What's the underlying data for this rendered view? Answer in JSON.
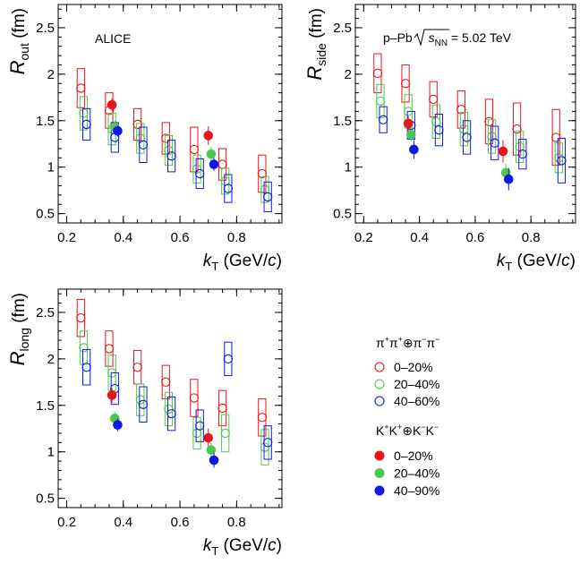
{
  "chart_data": {
    "type": "scatter",
    "experiment_label": "ALICE",
    "system_label": "p–Pb √sNN = 5.02 TeV",
    "system_parts": {
      "prefix": "p–Pb ",
      "s": "s",
      "sub": "NN",
      "suffix": " = 5.02 TeV"
    },
    "x_title": {
      "k": "k",
      "sub": "T",
      "unit_open": " (GeV/",
      "unit_c": "c",
      "unit_close": ")"
    },
    "xlim": [
      0.17,
      0.96
    ],
    "ylim": [
      0.4,
      2.75
    ],
    "x_ticks": [
      "0.2",
      "0.4",
      "0.6",
      "0.8"
    ],
    "y_ticks": [
      "0.5",
      "1",
      "1.5",
      "2",
      "2.5"
    ],
    "x_tick_values": [
      0.2,
      0.4,
      0.6,
      0.8
    ],
    "y_tick_values": [
      0.5,
      1,
      1.5,
      2,
      2.5
    ],
    "panels": [
      {
        "name": "Rout",
        "ylabel_main": "R",
        "ylabel_sub": "out",
        "ylabel_unit": " (fm)",
        "series": [
          {
            "name": "π+π+⊕π−π− 0–20%",
            "color": "#e8151b",
            "filled": false,
            "x": [
              0.25,
              0.35,
              0.45,
              0.55,
              0.65,
              0.75,
              0.89
            ],
            "y": [
              1.85,
              1.61,
              1.46,
              1.31,
              1.19,
              1.03,
              0.93
            ],
            "sys": [
              0.21,
              0.19,
              0.17,
              0.17,
              0.24,
              0.17,
              0.2
            ]
          },
          {
            "name": "π+π+⊕π−π− 20–40%",
            "color": "#4cc84c",
            "filled": false,
            "x": [
              0.26,
              0.36,
              0.46,
              0.56,
              0.66,
              0.76,
              0.9
            ],
            "y": [
              1.58,
              1.41,
              1.31,
              1.18,
              0.98,
              0.85,
              0.76
            ],
            "sys": [
              0.18,
              0.17,
              0.16,
              0.16,
              0.15,
              0.14,
              0.14
            ]
          },
          {
            "name": "π+π+⊕π−π− 40–60%",
            "color": "#0f18e8",
            "filled": false,
            "x": [
              0.27,
              0.37,
              0.47,
              0.57,
              0.67,
              0.77,
              0.91
            ],
            "y": [
              1.46,
              1.32,
              1.24,
              1.12,
              0.93,
              0.77,
              0.68
            ],
            "sys": [
              0.17,
              0.16,
              0.19,
              0.17,
              0.16,
              0.15,
              0.16
            ]
          },
          {
            "name": "K+K+⊕K−K− 0–20%",
            "color": "#e8151b",
            "filled": true,
            "x": [
              0.36,
              0.7
            ],
            "y": [
              1.67,
              1.34
            ],
            "stat": [
              0.07,
              0.1
            ]
          },
          {
            "name": "K+K+⊕K−K− 20–40%",
            "color": "#4cc84c",
            "filled": true,
            "x": [
              0.37,
              0.71
            ],
            "y": [
              1.43,
              1.14
            ],
            "stat": [
              0.07,
              0.08
            ]
          },
          {
            "name": "K+K+⊕K−K− 40–90%",
            "color": "#0f18e8",
            "filled": true,
            "x": [
              0.38,
              0.72
            ],
            "y": [
              1.39,
              1.03
            ],
            "stat": [
              0.06,
              0.07
            ]
          }
        ]
      },
      {
        "name": "Rside",
        "ylabel_main": "R",
        "ylabel_sub": "side",
        "ylabel_unit": " (fm)",
        "series": [
          {
            "name": "π+π+⊕π−π− 0–20%",
            "color": "#e8151b",
            "filled": false,
            "x": [
              0.25,
              0.35,
              0.45,
              0.55,
              0.65,
              0.75,
              0.89
            ],
            "y": [
              2.01,
              1.9,
              1.73,
              1.62,
              1.49,
              1.41,
              1.32
            ],
            "sys": [
              0.21,
              0.2,
              0.19,
              0.2,
              0.24,
              0.28,
              0.3
            ]
          },
          {
            "name": "π+π+⊕π−π− 20–40%",
            "color": "#4cc84c",
            "filled": false,
            "x": [
              0.26,
              0.36,
              0.46,
              0.56,
              0.66,
              0.76,
              0.9
            ],
            "y": [
              1.71,
              1.6,
              1.49,
              1.41,
              1.33,
              1.22,
              1.1
            ],
            "sys": [
              0.18,
              0.18,
              0.18,
              0.18,
              0.18,
              0.17,
              0.16
            ]
          },
          {
            "name": "π+π+⊕π−π− 40–60%",
            "color": "#0f18e8",
            "filled": false,
            "x": [
              0.27,
              0.37,
              0.47,
              0.57,
              0.67,
              0.77,
              0.91
            ],
            "y": [
              1.51,
              1.45,
              1.4,
              1.32,
              1.26,
              1.14,
              1.07
            ],
            "sys": [
              0.14,
              0.15,
              0.17,
              0.18,
              0.18,
              0.16,
              0.24
            ]
          },
          {
            "name": "K+K+⊕K−K− 0–20%",
            "color": "#e8151b",
            "filled": true,
            "x": [
              0.36,
              0.7
            ],
            "y": [
              1.47,
              1.17
            ],
            "stat": [
              0.08,
              0.12
            ]
          },
          {
            "name": "K+K+⊕K−K− 20–40%",
            "color": "#4cc84c",
            "filled": true,
            "x": [
              0.37,
              0.71
            ],
            "y": [
              1.35,
              0.94
            ],
            "stat": [
              0.07,
              0.1
            ]
          },
          {
            "name": "K+K+⊕K−K− 40–90%",
            "color": "#0f18e8",
            "filled": true,
            "x": [
              0.38,
              0.72
            ],
            "y": [
              1.19,
              0.87
            ],
            "stat": [
              0.1,
              0.12
            ]
          }
        ]
      },
      {
        "name": "Rlong",
        "ylabel_main": "R",
        "ylabel_sub": "long",
        "ylabel_unit": " (fm)",
        "series": [
          {
            "name": "π+π+⊕π−π− 0–20%",
            "color": "#e8151b",
            "filled": false,
            "x": [
              0.25,
              0.35,
              0.45,
              0.55,
              0.65,
              0.75,
              0.89
            ],
            "y": [
              2.44,
              2.11,
              1.91,
              1.75,
              1.58,
              1.47,
              1.37
            ],
            "sys": [
              0.2,
              0.19,
              0.18,
              0.18,
              0.2,
              0.19,
              0.2
            ]
          },
          {
            "name": "π+π+⊕π−π− 20–40%",
            "color": "#4cc84c",
            "filled": false,
            "x": [
              0.26,
              0.36,
              0.46,
              0.56,
              0.66,
              0.76,
              0.9
            ],
            "y": [
              2.12,
              1.85,
              1.56,
              1.46,
              1.2,
              1.2,
              1.05
            ],
            "sys": [
              0.18,
              0.19,
              0.17,
              0.18,
              0.17,
              0.2,
              0.19
            ]
          },
          {
            "name": "π+π+⊕π−π− 40–60%",
            "color": "#0f18e8",
            "filled": false,
            "x": [
              0.27,
              0.37,
              0.47,
              0.57,
              0.67,
              0.77,
              0.91
            ],
            "y": [
              1.91,
              1.68,
              1.51,
              1.41,
              1.28,
              2.0,
              1.1
            ],
            "sys": [
              0.19,
              0.17,
              0.19,
              0.18,
              0.17,
              0.18,
              0.18
            ]
          },
          {
            "name": "K+K+⊕K−K− 0–20%",
            "color": "#e8151b",
            "filled": true,
            "x": [
              0.36,
              0.7
            ],
            "y": [
              1.61,
              1.15
            ],
            "stat": [
              0.08,
              0.1
            ]
          },
          {
            "name": "K+K+⊕K−K− 20–40%",
            "color": "#4cc84c",
            "filled": true,
            "x": [
              0.37,
              0.71
            ],
            "y": [
              1.36,
              1.02
            ],
            "stat": [
              0.07,
              0.08
            ]
          },
          {
            "name": "K+K+⊕K−K− 40–90%",
            "color": "#0f18e8",
            "filled": true,
            "x": [
              0.38,
              0.72
            ],
            "y": [
              1.29,
              0.91
            ],
            "stat": [
              0.07,
              0.08
            ]
          }
        ]
      }
    ],
    "legend": {
      "pion_header": {
        "a": "π",
        "a_sup": "+",
        "b": "π",
        "b_sup": "+",
        "op": "⊕",
        "c": "π",
        "c_sup": "−",
        "d": "π",
        "d_sup": "−"
      },
      "kaon_header": {
        "a": "K",
        "a_sup": "+",
        "b": "K",
        "b_sup": "+",
        "op": "⊕",
        "c": "K",
        "c_sup": "−",
        "d": "K",
        "d_sup": "−"
      },
      "pion_entries": [
        {
          "label": "0–20%",
          "color": "#e8151b",
          "filled": false
        },
        {
          "label": "20–40%",
          "color": "#4cc84c",
          "filled": false
        },
        {
          "label": "40–60%",
          "color": "#0f18e8",
          "filled": false
        }
      ],
      "kaon_entries": [
        {
          "label": "0–20%",
          "color": "#e8151b",
          "filled": true
        },
        {
          "label": "20–40%",
          "color": "#4cc84c",
          "filled": true
        },
        {
          "label": "40–90%",
          "color": "#0f18e8",
          "filled": true
        }
      ]
    }
  }
}
